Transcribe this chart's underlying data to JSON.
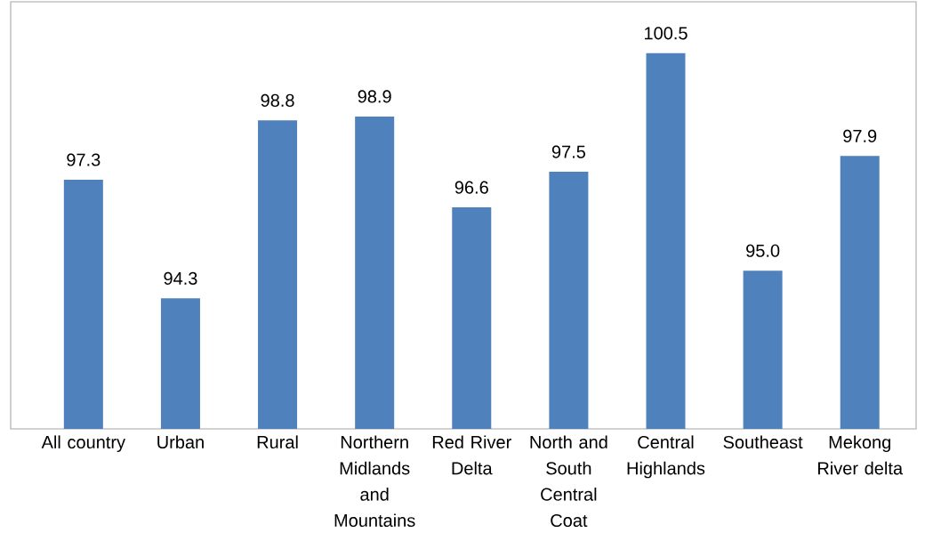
{
  "chart_data": {
    "type": "bar",
    "categories": [
      "All country",
      "Urban",
      "Rural",
      "Northern Midlands and Mountains",
      "Red River Delta",
      "North and South Central Coat",
      "Central Highlands",
      "Southeast",
      "Mekong River delta"
    ],
    "values": [
      97.3,
      94.3,
      98.8,
      98.9,
      96.6,
      97.5,
      100.5,
      95.0,
      97.9
    ],
    "value_labels": [
      "97.3",
      "94.3",
      "98.8",
      "98.9",
      "96.6",
      "97.5",
      "100.5",
      "95.0",
      "97.9"
    ],
    "color": "#4f81bd",
    "ylim": [
      91,
      101.8
    ]
  }
}
